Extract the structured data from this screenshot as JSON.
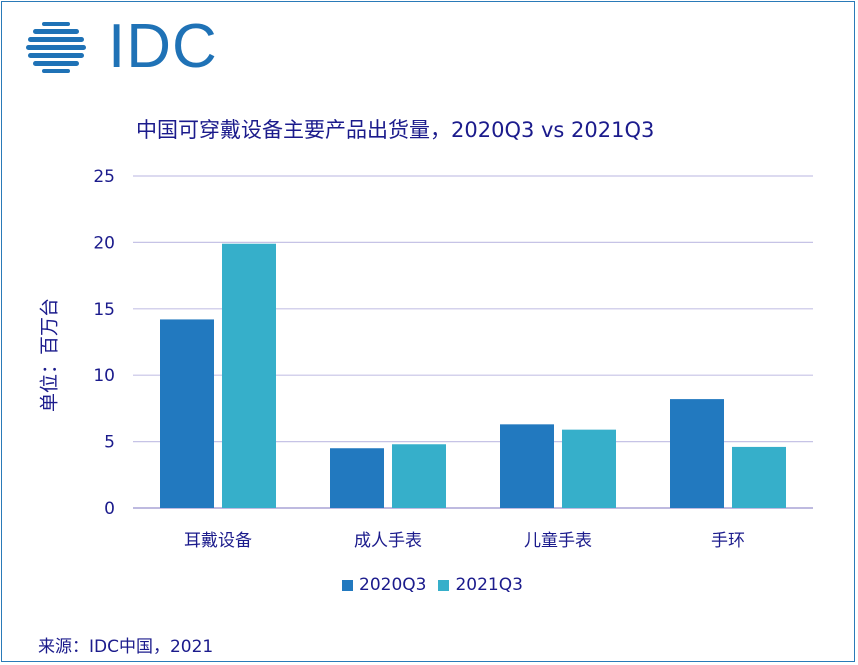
{
  "logo": {
    "text": "IDC",
    "icon": "idc-globe-icon",
    "color": "#1f72b6"
  },
  "chart_data": {
    "type": "bar",
    "title": "中国可穿戴设备主要产品出货量，2020Q3 vs 2021Q3",
    "ylabel": "单位：百万台",
    "xlabel": "",
    "ylim": [
      0,
      25
    ],
    "yticks": [
      0,
      5,
      10,
      15,
      20,
      25
    ],
    "categories": [
      "耳戴设备",
      "成人手表",
      "儿童手表",
      "手环"
    ],
    "series": [
      {
        "name": "2020Q3",
        "color": "#2279bf",
        "values": [
          14.2,
          4.5,
          6.3,
          8.2
        ]
      },
      {
        "name": "2021Q3",
        "color": "#36afca",
        "values": [
          19.9,
          4.8,
          5.9,
          4.6
        ]
      }
    ],
    "grid": true,
    "legend_position": "bottom"
  },
  "source": "来源：IDC中国，2021",
  "colors": {
    "text": "#1b1b8c",
    "grid": "#c6c3e6",
    "axis": "#a8a4d6",
    "frame": "#2a7ab8"
  }
}
